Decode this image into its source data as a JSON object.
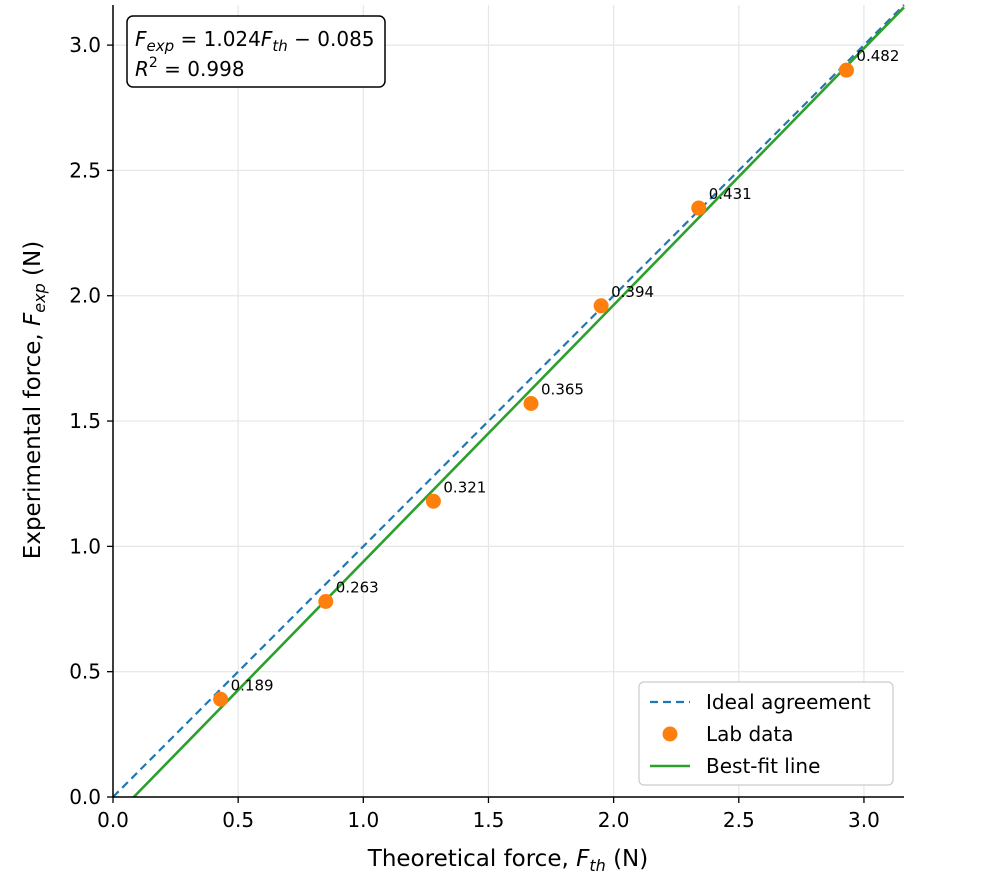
{
  "chart_data": {
    "type": "scatter",
    "xlabel_main": "Theoretical force, ",
    "xlabel_sym": "F",
    "xlabel_sub": "th",
    "xlabel_unit": " (N)",
    "ylabel_main": "Experimental force, ",
    "ylabel_sym": "F",
    "ylabel_sub": "exp",
    "ylabel_unit": " (N)",
    "xlim": [
      0.0,
      3.16
    ],
    "ylim": [
      0.0,
      3.16
    ],
    "xticks": [
      "0.0",
      "0.5",
      "1.0",
      "1.5",
      "2.0",
      "2.5",
      "3.0"
    ],
    "yticks": [
      "0.0",
      "0.5",
      "1.0",
      "1.5",
      "2.0",
      "2.5",
      "3.0"
    ],
    "grid": true,
    "legend_position": "bottom-right",
    "series": [
      {
        "name": "Ideal agreement",
        "kind": "line",
        "style": "dashed",
        "color": "#1f77b4",
        "slope": 1.0,
        "intercept": 0.0
      },
      {
        "name": "Lab data",
        "kind": "scatter",
        "color": "#ff7f0e",
        "x": [
          0.43,
          0.85,
          1.28,
          1.67,
          1.95,
          2.34,
          2.93
        ],
        "y": [
          0.39,
          0.78,
          1.18,
          1.57,
          1.96,
          2.35,
          2.9
        ],
        "labels": [
          "0.189",
          "0.263",
          "0.321",
          "0.365",
          "0.394",
          "0.431",
          "0.482"
        ]
      },
      {
        "name": "Best-fit line",
        "kind": "line",
        "style": "solid",
        "color": "#2ca02c",
        "slope": 1.024,
        "intercept": -0.085
      }
    ],
    "annotation": {
      "line1_lhs_sym": "F",
      "line1_lhs_sub": "exp",
      "line1_mid": " = 1.024",
      "line1_rhs_sym": "F",
      "line1_rhs_sub": "th",
      "line1_tail": " − 0.085",
      "line2_sym": "R",
      "line2_sup": "2",
      "line2_tail": " = 0.998"
    }
  }
}
